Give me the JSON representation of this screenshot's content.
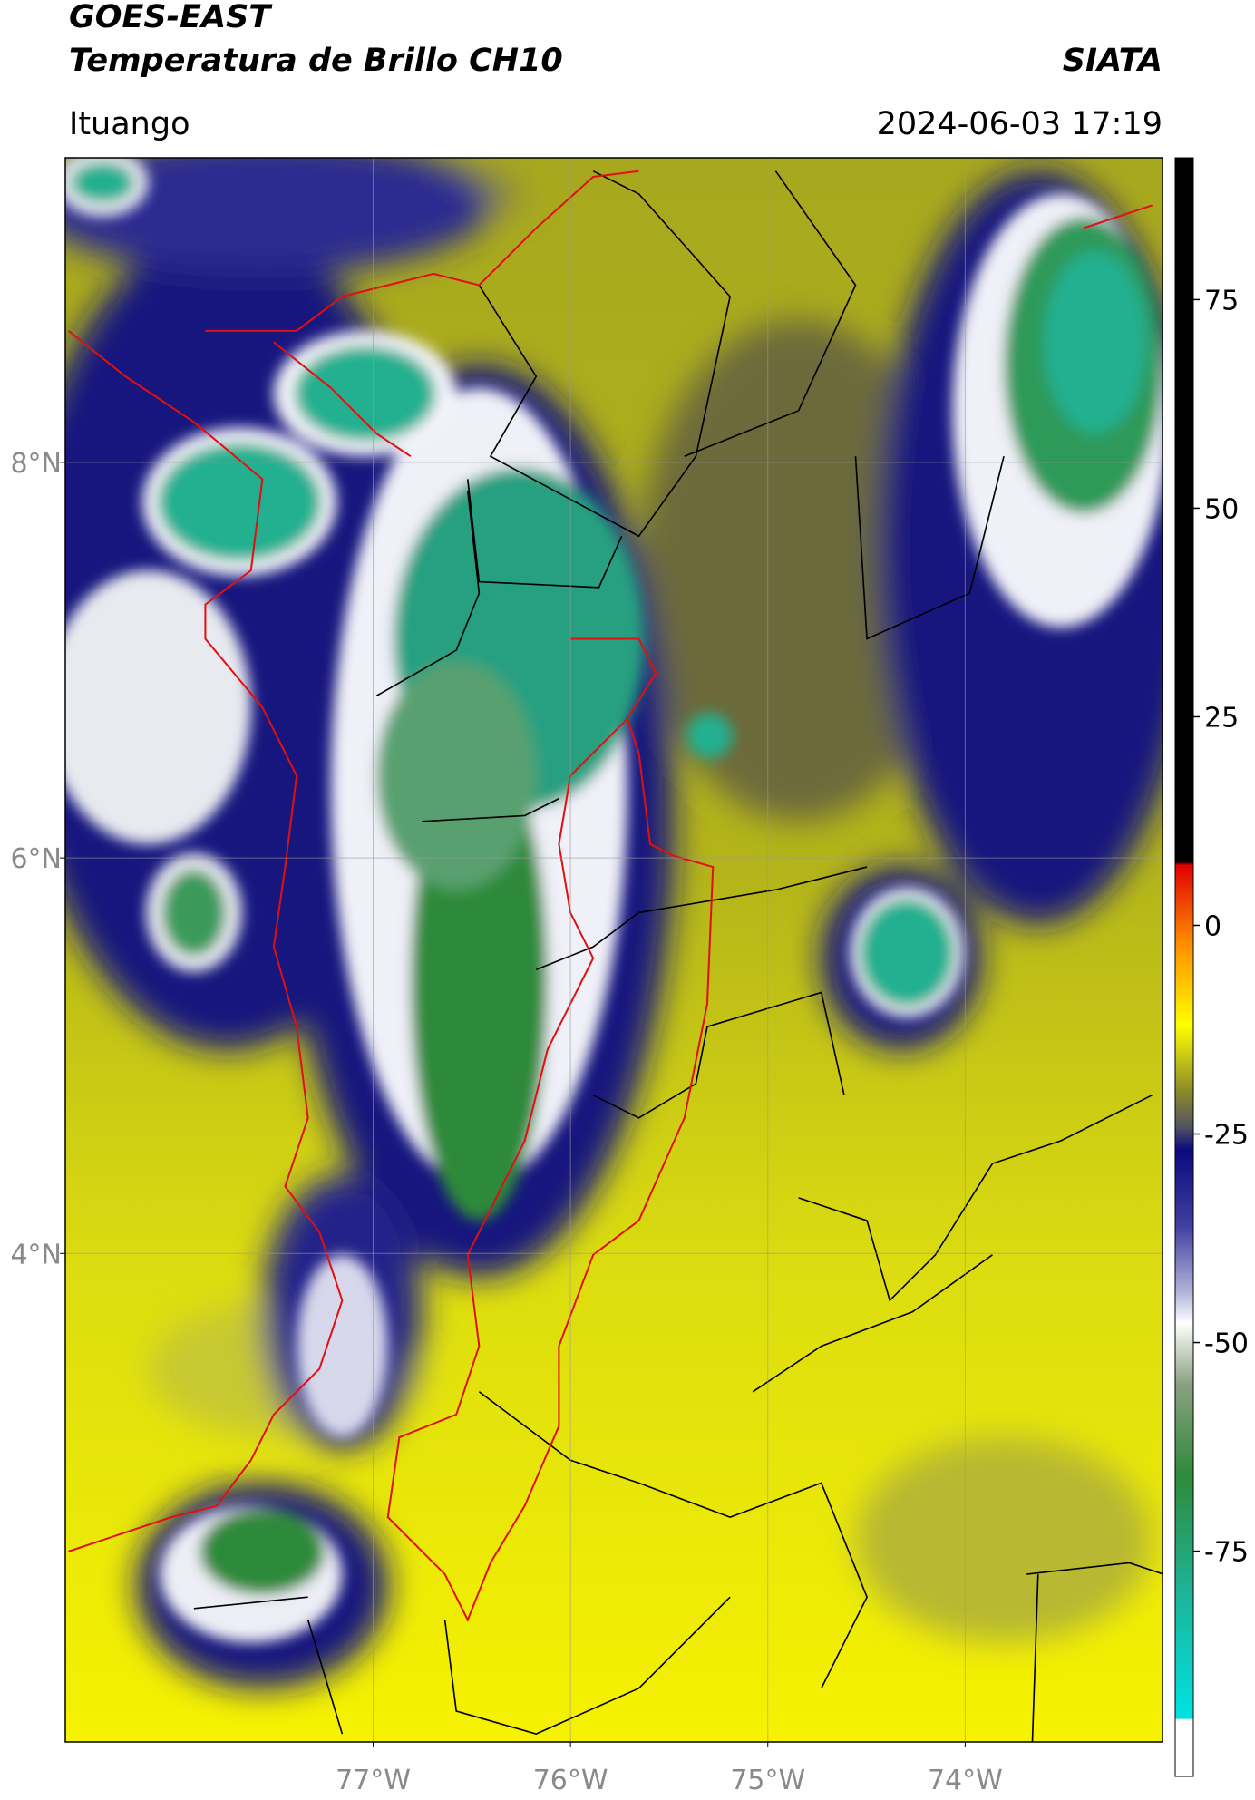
{
  "header": {
    "satellite": "GOES-EAST",
    "product": "Temperatura de Brillo CH10",
    "agency": "SIATA",
    "location": "Ituango",
    "datetime": "2024-06-03 17:19"
  },
  "map": {
    "xlim": [
      -78.56,
      -73.0
    ],
    "ylim": [
      1.53,
      9.54
    ],
    "xticks": [
      {
        "value": -77,
        "label": "77°W"
      },
      {
        "value": -76,
        "label": "76°W"
      },
      {
        "value": -75,
        "label": "75°W"
      },
      {
        "value": -74,
        "label": "74°W"
      }
    ],
    "yticks": [
      {
        "value": 4,
        "label": "4°N"
      },
      {
        "value": 6,
        "label": "6°N"
      },
      {
        "value": 8,
        "label": "8°N"
      }
    ],
    "grid": true
  },
  "colorbar": {
    "lim": [
      -102,
      92
    ],
    "ticks": [
      -75,
      -50,
      -25,
      0,
      25,
      50,
      75
    ]
  }
}
